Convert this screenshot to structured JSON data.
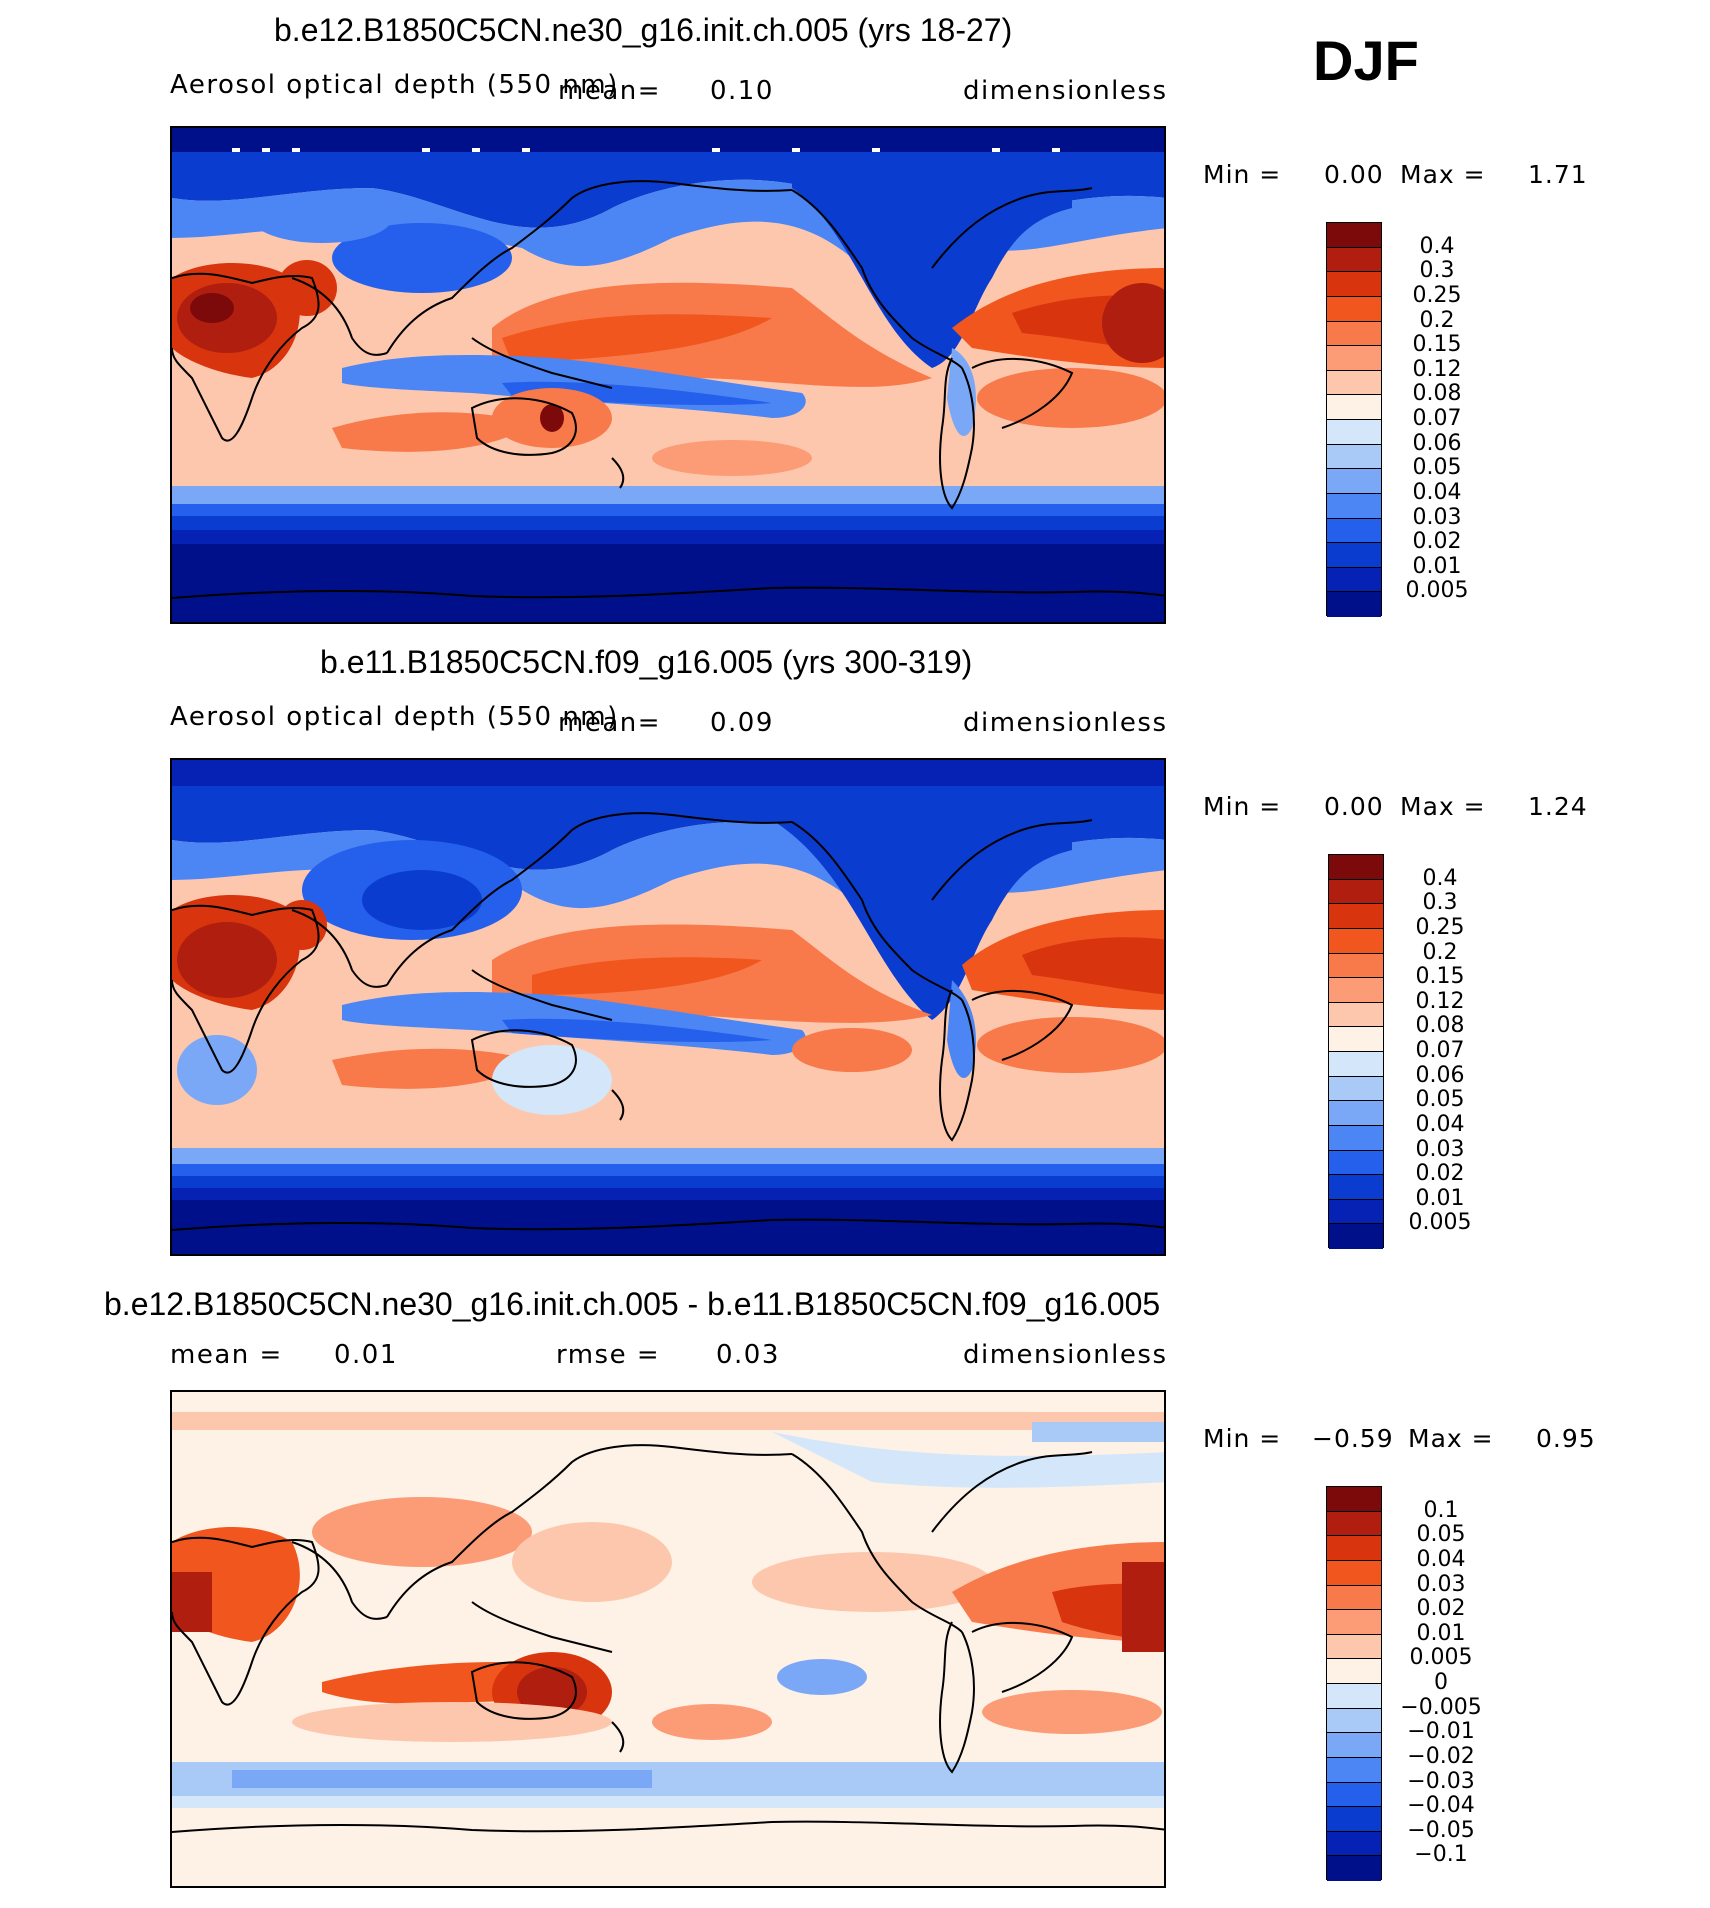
{
  "season": "DJF",
  "panels": [
    {
      "title": "b.e12.B1850C5CN.ne30_g16.init.ch.005 (yrs 18-27)",
      "variable": "Aerosol optical depth (550 nm)",
      "mean_label": "mean=",
      "mean_value": "0.10",
      "units": "dimensionless",
      "min_label": "Min =",
      "min_value": "0.00",
      "max_label": "Max =",
      "max_value": "1.71"
    },
    {
      "title": "b.e11.B1850C5CN.f09_g16.005 (yrs 300-319)",
      "variable": "Aerosol optical depth (550 nm)",
      "mean_label": "mean=",
      "mean_value": "0.09",
      "units": "dimensionless",
      "min_label": "Min =",
      "min_value": "0.00",
      "max_label": "Max =",
      "max_value": "1.24"
    },
    {
      "title": "b.e12.B1850C5CN.ne30_g16.init.ch.005 - b.e11.B1850C5CN.f09_g16.005",
      "mean_label": "mean =",
      "mean_value": "0.01",
      "rmse_label": "rmse =",
      "rmse_value": "0.03",
      "units": "dimensionless",
      "min_label": "Min =",
      "min_value": "−0.59",
      "max_label": "Max =",
      "max_value": "0.95"
    }
  ],
  "colorbar_aod": {
    "levels": [
      "0.4",
      "0.3",
      "0.25",
      "0.2",
      "0.15",
      "0.12",
      "0.08",
      "0.07",
      "0.06",
      "0.05",
      "0.04",
      "0.03",
      "0.02",
      "0.01",
      "0.005"
    ],
    "colors": [
      "#7d0a0a",
      "#b01e10",
      "#d8350f",
      "#f0561d",
      "#f8794a",
      "#fb9c76",
      "#fdc7ad",
      "#fef1e6",
      "#d4e6fa",
      "#a9caf6",
      "#7aa8f6",
      "#4c86f5",
      "#2460eb",
      "#0b3cd0",
      "#0622b4",
      "#00108a"
    ]
  },
  "colorbar_diff": {
    "levels": [
      "0.1",
      "0.05",
      "0.04",
      "0.03",
      "0.02",
      "0.01",
      "0.005",
      "0",
      "−0.005",
      "−0.01",
      "−0.02",
      "−0.03",
      "−0.04",
      "−0.05",
      "−0.1"
    ],
    "colors": [
      "#7d0a0a",
      "#b01e10",
      "#d8350f",
      "#f0561d",
      "#f8794a",
      "#fb9c76",
      "#fdc7ad",
      "#fef1e6",
      "#d4e6fa",
      "#a9caf6",
      "#7aa8f6",
      "#4c86f5",
      "#2460eb",
      "#0b3cd0",
      "#0622b4",
      "#00108a"
    ]
  }
}
